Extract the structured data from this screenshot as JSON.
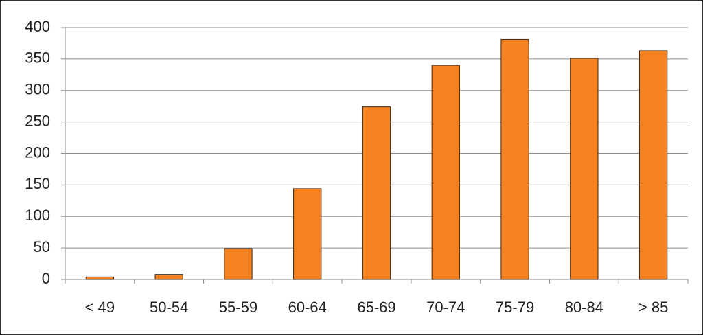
{
  "chart_data": {
    "type": "bar",
    "categories": [
      "< 49",
      "50-54",
      "55-59",
      "60-64",
      "65-69",
      "70-74",
      "75-79",
      "80-84",
      "> 85"
    ],
    "values": [
      4,
      8,
      49,
      144,
      274,
      340,
      381,
      351,
      363
    ],
    "color": "#f5821f",
    "ylim": [
      0,
      400
    ],
    "yticks": [
      0,
      50,
      100,
      150,
      200,
      250,
      300,
      350,
      400
    ],
    "grid": true
  }
}
